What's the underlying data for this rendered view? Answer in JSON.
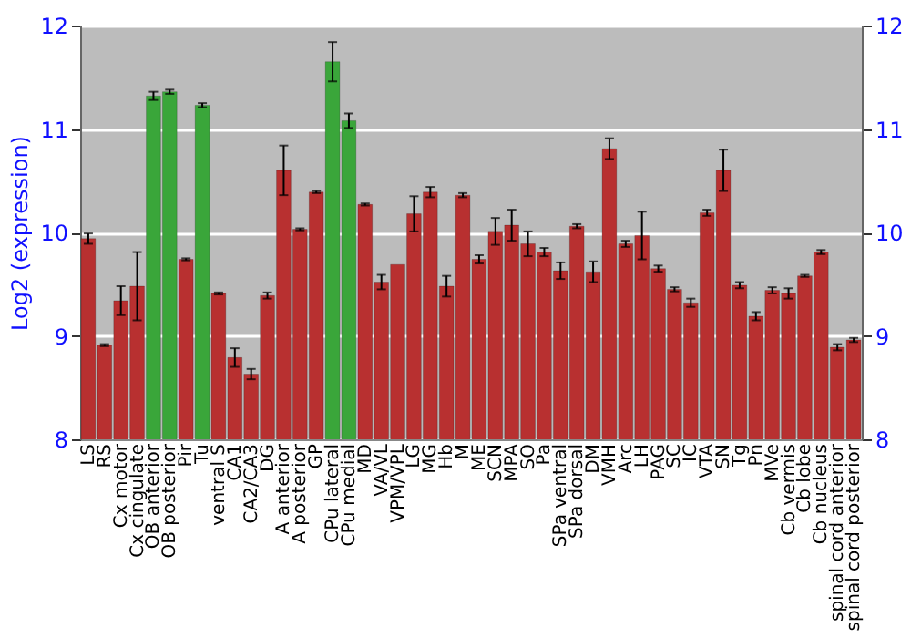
{
  "chart_data": {
    "type": "bar",
    "ylabel": "Log2 (expression)",
    "categories": [
      "LS",
      "RS",
      "Cx motor",
      "Cx cingulate",
      "OB anterior",
      "OB posterior",
      "Pir",
      "Tu",
      "ventral S",
      "CA1",
      "CA2/CA3",
      "DG",
      "A anterior",
      "A posterior",
      "GP",
      "CPu lateral",
      "CPu medial",
      "MD",
      "VA/VL",
      "VPM/VPL",
      "LG",
      "MG",
      "Hb",
      "M",
      "ME",
      "SCN",
      "MPA",
      "SO",
      "Pa",
      "SPa ventral",
      "SPa dorsal",
      "DM",
      "VMH",
      "Arc",
      "LH",
      "PAG",
      "SC",
      "IC",
      "VTA",
      "SN",
      "Tg",
      "Pn",
      "MVe",
      "Cb vermis",
      "Cb lobe",
      "Cb nucleus",
      "spinal cord anterior",
      "spinal cord posterior"
    ],
    "values": [
      9.94,
      8.91,
      9.34,
      9.48,
      11.32,
      11.36,
      9.74,
      11.23,
      9.41,
      8.79,
      8.63,
      9.39,
      10.6,
      10.03,
      10.39,
      11.65,
      11.08,
      10.27,
      9.52,
      9.69,
      10.18,
      10.39,
      9.48,
      10.36,
      9.74,
      10.01,
      10.07,
      9.89,
      9.81,
      9.63,
      10.06,
      9.62,
      10.81,
      9.89,
      9.97,
      9.65,
      9.45,
      9.32,
      10.19,
      10.6,
      9.49,
      9.19,
      9.44,
      9.41,
      9.58,
      9.81,
      8.89,
      8.96
    ],
    "errors": [
      0.05,
      0.01,
      0.14,
      0.33,
      0.04,
      0.02,
      0.01,
      0.02,
      0.01,
      0.09,
      0.05,
      0.03,
      0.24,
      0.01,
      0.01,
      0.19,
      0.07,
      0.01,
      0.07,
      null,
      0.17,
      0.05,
      0.1,
      0.02,
      0.04,
      0.13,
      0.15,
      0.12,
      0.04,
      0.08,
      0.02,
      0.1,
      0.1,
      0.03,
      0.23,
      0.03,
      0.02,
      0.04,
      0.03,
      0.2,
      0.03,
      0.04,
      0.03,
      0.05,
      0.01,
      0.02,
      0.03,
      0.02
    ],
    "colors": [
      "#b83030",
      "#b83030",
      "#b83030",
      "#b83030",
      "#3aa63a",
      "#3aa63a",
      "#b83030",
      "#3aa63a",
      "#b83030",
      "#b83030",
      "#b83030",
      "#b83030",
      "#b83030",
      "#b83030",
      "#b83030",
      "#3aa63a",
      "#3aa63a",
      "#b83030",
      "#b83030",
      "#b83030",
      "#b83030",
      "#b83030",
      "#b83030",
      "#b83030",
      "#b83030",
      "#b83030",
      "#b83030",
      "#b83030",
      "#b83030",
      "#b83030",
      "#b83030",
      "#b83030",
      "#b83030",
      "#b83030",
      "#b83030",
      "#b83030",
      "#b83030",
      "#b83030",
      "#b83030",
      "#b83030",
      "#b83030",
      "#b83030",
      "#b83030",
      "#b83030",
      "#b83030",
      "#b83030",
      "#b83030",
      "#b83030"
    ],
    "ylim": [
      8,
      12
    ],
    "yticks": [
      8,
      9,
      10,
      11,
      12
    ],
    "y2lim": [
      8,
      12
    ],
    "y2ticks": [
      8,
      9,
      10,
      11,
      12
    ],
    "grid": "y"
  }
}
